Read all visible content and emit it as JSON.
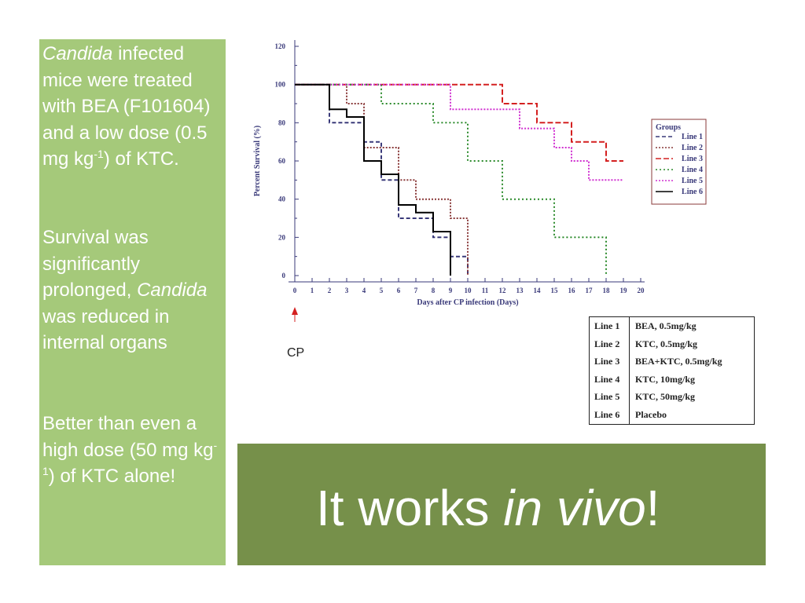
{
  "left_panel": {
    "para1": {
      "italic": "Candida",
      "t1": " infected mice were treated with BEA (F101604) and a low dose (0.5 mg kg",
      "sup": "-1",
      "t2": ") of KTC."
    },
    "para2": {
      "t1": "Survival was significantly prolonged, ",
      "italic": "Candida",
      "t2": " was reduced in internal organs"
    },
    "para3": {
      "t1": "Better than even a high dose (50 mg kg",
      "sup": "-1",
      "t2": ") of KTC alone!"
    }
  },
  "banner": {
    "plain": "It works ",
    "italic": "in vivo",
    "end": "!"
  },
  "cp_label": "CP",
  "line_key": [
    {
      "line": "Line 1",
      "desc": "BEA, 0.5mg/kg"
    },
    {
      "line": "Line 2",
      "desc": "KTC, 0.5mg/kg"
    },
    {
      "line": "Line 3",
      "desc": "BEA+KTC, 0.5mg/kg"
    },
    {
      "line": "Line 4",
      "desc": "KTC, 10mg/kg"
    },
    {
      "line": "Line 5",
      "desc": "KTC, 50mg/kg"
    },
    {
      "line": "Line 6",
      "desc": "Placebo"
    }
  ],
  "chart_data": {
    "type": "line",
    "step": true,
    "xlabel": "Days after CP infection (Days)",
    "ylabel": "Percent Survival (%)",
    "xlim": [
      0,
      20
    ],
    "ylim": [
      0,
      120
    ],
    "xticks": [
      0,
      1,
      2,
      3,
      4,
      5,
      6,
      7,
      8,
      9,
      10,
      11,
      12,
      13,
      14,
      15,
      16,
      17,
      18,
      19,
      20
    ],
    "yticks": [
      0,
      20,
      40,
      60,
      80,
      100,
      120
    ],
    "grid": false,
    "legend": {
      "title": "Groups",
      "placement": "right"
    },
    "series": [
      {
        "name": "Line 1",
        "color": "#3a3a7a",
        "dash": "5,3",
        "points": [
          [
            0,
            100
          ],
          [
            2,
            100
          ],
          [
            2,
            80
          ],
          [
            4,
            80
          ],
          [
            4,
            70
          ],
          [
            5,
            70
          ],
          [
            5,
            50
          ],
          [
            6,
            50
          ],
          [
            6,
            30
          ],
          [
            8,
            30
          ],
          [
            8,
            20
          ],
          [
            9,
            20
          ],
          [
            9,
            10
          ],
          [
            10,
            10
          ],
          [
            10,
            0
          ]
        ]
      },
      {
        "name": "Line 2",
        "color": "#8a3a3a",
        "dash": "2,2",
        "points": [
          [
            0,
            100
          ],
          [
            3,
            100
          ],
          [
            3,
            90
          ],
          [
            4,
            90
          ],
          [
            4,
            67
          ],
          [
            6,
            67
          ],
          [
            6,
            50
          ],
          [
            7,
            50
          ],
          [
            7,
            40
          ],
          [
            9,
            40
          ],
          [
            9,
            30
          ],
          [
            10,
            30
          ],
          [
            10,
            13
          ],
          [
            10,
            0
          ]
        ]
      },
      {
        "name": "Line 3",
        "color": "#d42020",
        "dash": "7,3",
        "points": [
          [
            0,
            100
          ],
          [
            12,
            100
          ],
          [
            12,
            90
          ],
          [
            14,
            90
          ],
          [
            14,
            80
          ],
          [
            16,
            80
          ],
          [
            16,
            70
          ],
          [
            18,
            70
          ],
          [
            18,
            60
          ],
          [
            19,
            60
          ]
        ]
      },
      {
        "name": "Line 4",
        "color": "#2a8a2a",
        "dash": "2,3",
        "points": [
          [
            0,
            100
          ],
          [
            5,
            100
          ],
          [
            5,
            90
          ],
          [
            8,
            90
          ],
          [
            8,
            80
          ],
          [
            10,
            80
          ],
          [
            10,
            60
          ],
          [
            12,
            60
          ],
          [
            12,
            40
          ],
          [
            15,
            40
          ],
          [
            15,
            20
          ],
          [
            18,
            20
          ],
          [
            18,
            0
          ]
        ]
      },
      {
        "name": "Line 5",
        "color": "#d030d0",
        "dash": "2,2",
        "points": [
          [
            0,
            100
          ],
          [
            9,
            100
          ],
          [
            9,
            87
          ],
          [
            13,
            87
          ],
          [
            13,
            77
          ],
          [
            15,
            77
          ],
          [
            15,
            67
          ],
          [
            16,
            67
          ],
          [
            16,
            60
          ],
          [
            17,
            60
          ],
          [
            17,
            50
          ],
          [
            19,
            50
          ]
        ]
      },
      {
        "name": "Line 6",
        "color": "#000000",
        "dash": "",
        "points": [
          [
            0,
            100
          ],
          [
            2,
            100
          ],
          [
            2,
            87
          ],
          [
            3,
            87
          ],
          [
            3,
            83
          ],
          [
            4,
            83
          ],
          [
            4,
            60
          ],
          [
            5,
            60
          ],
          [
            5,
            53
          ],
          [
            6,
            53
          ],
          [
            6,
            37
          ],
          [
            7,
            37
          ],
          [
            7,
            33
          ],
          [
            8,
            33
          ],
          [
            8,
            23
          ],
          [
            9,
            23
          ],
          [
            9,
            0
          ]
        ]
      }
    ],
    "annotation": {
      "x": 0,
      "label": "CP"
    }
  }
}
